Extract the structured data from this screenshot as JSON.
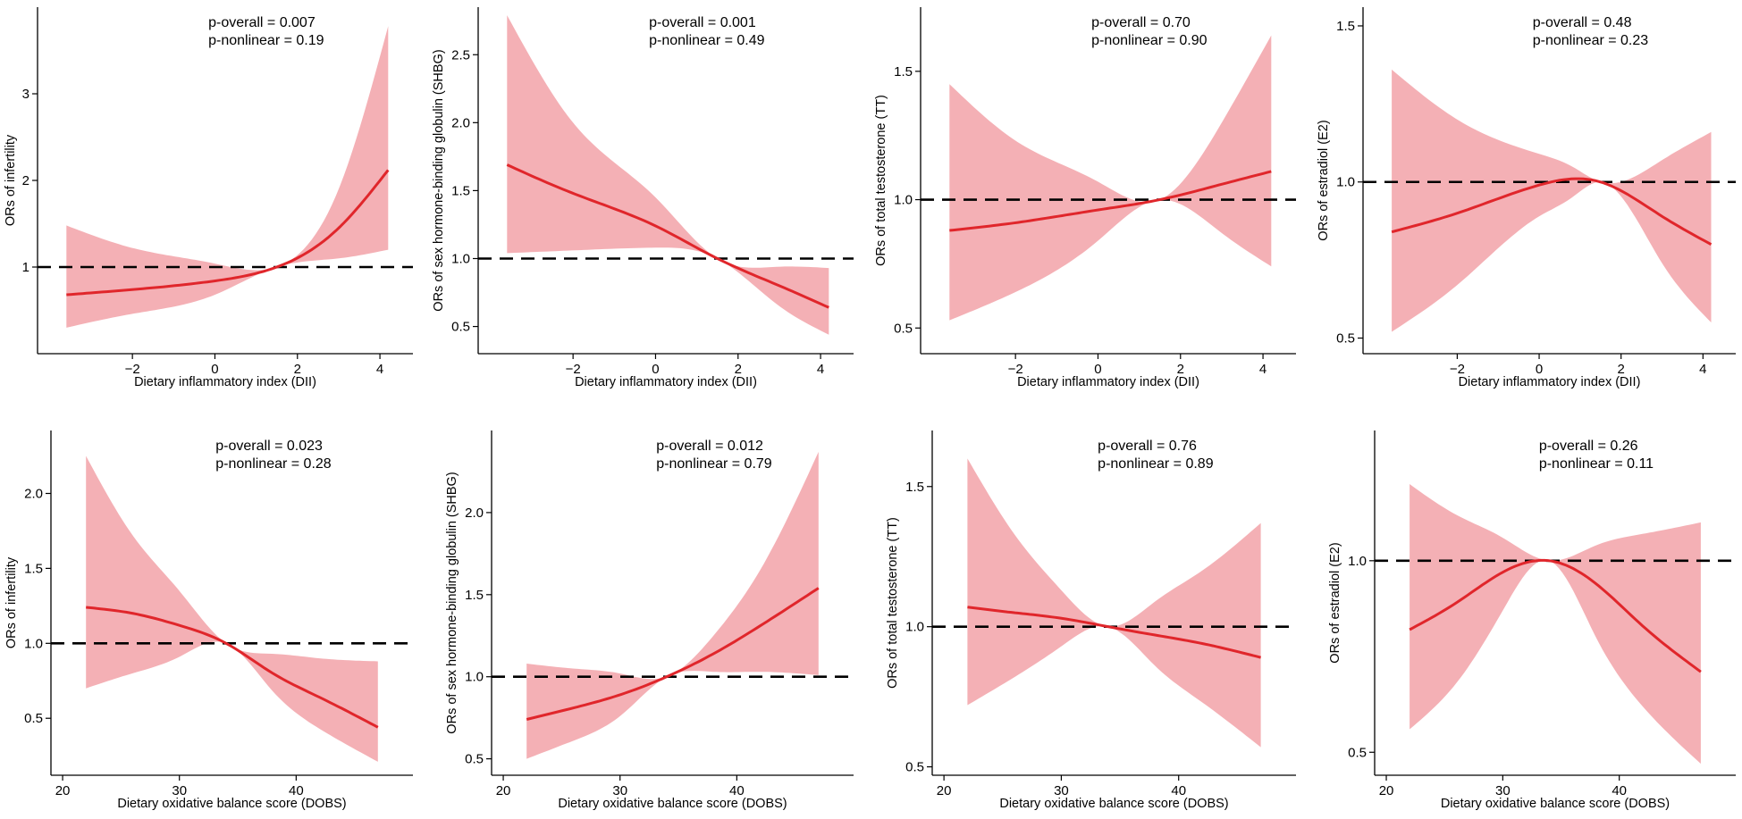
{
  "figure": {
    "description_colors": {
      "curve": "#e0262b",
      "band": "#f4b0b5",
      "reference_line": "#000000",
      "axis": "#000000"
    }
  },
  "chart_data": [
    {
      "type": "line",
      "panel": "A1",
      "title": "",
      "xlabel": "Dietary inflammatory index (DII)",
      "ylabel": "ORs of infertility",
      "xlim": [
        -4.3,
        4.8
      ],
      "ylim": [
        0.0,
        4.0
      ],
      "xticks": [
        -2,
        0,
        2,
        4
      ],
      "yticks": [
        1,
        2,
        3
      ],
      "ytick_labels": [
        "1",
        "2",
        "3"
      ],
      "reference_y": 1.0,
      "annotation": [
        "p-overall = 0.007",
        "p-nonlinear = 0.19"
      ],
      "series": [
        {
          "name": "OR",
          "x": [
            -3.6,
            -2,
            0,
            1.5,
            3,
            4.2
          ],
          "y": [
            0.68,
            0.74,
            0.84,
            1.0,
            1.45,
            2.12
          ]
        },
        {
          "name": "CI lower",
          "x": [
            -3.6,
            -2,
            0,
            1.5,
            3,
            4.2
          ],
          "y": [
            0.3,
            0.46,
            0.68,
            1.0,
            1.1,
            1.2
          ]
        },
        {
          "name": "CI upper",
          "x": [
            -3.6,
            -2,
            0,
            1.5,
            3,
            4.2
          ],
          "y": [
            1.48,
            1.22,
            1.04,
            1.0,
            1.9,
            3.78
          ]
        }
      ]
    },
    {
      "type": "line",
      "panel": "A2",
      "title": "",
      "xlabel": "Dietary inflammatory index (DII)",
      "ylabel": "ORs of sex hormone-binding globulin (SHBG)",
      "xlim": [
        -4.3,
        4.8
      ],
      "ylim": [
        0.3,
        2.85
      ],
      "xticks": [
        -2,
        0,
        2,
        4
      ],
      "yticks": [
        0.5,
        1.0,
        1.5,
        2.0,
        2.5
      ],
      "ytick_labels": [
        "0.5",
        "1.0",
        "1.5",
        "2.0",
        "2.5"
      ],
      "reference_y": 1.0,
      "annotation": [
        "p-overall = 0.001",
        "p-nonlinear = 0.49"
      ],
      "series": [
        {
          "name": "OR",
          "x": [
            -3.6,
            -2,
            0,
            1.5,
            3,
            4.2
          ],
          "y": [
            1.69,
            1.48,
            1.24,
            1.0,
            0.8,
            0.64
          ]
        },
        {
          "name": "CI lower",
          "x": [
            -3.6,
            -2,
            0,
            1.5,
            3,
            4.2
          ],
          "y": [
            1.04,
            1.06,
            1.08,
            1.0,
            0.65,
            0.44
          ]
        },
        {
          "name": "CI upper",
          "x": [
            -3.6,
            -2,
            0,
            1.5,
            3,
            4.2
          ],
          "y": [
            2.79,
            2.0,
            1.45,
            1.0,
            0.94,
            0.93
          ]
        }
      ]
    },
    {
      "type": "line",
      "panel": "A3",
      "title": "",
      "xlabel": "Dietary inflammatory index (DII)",
      "ylabel": "ORs of total testosterone (TT)",
      "xlim": [
        -4.3,
        4.8
      ],
      "ylim": [
        0.4,
        1.75
      ],
      "xticks": [
        -2,
        0,
        2,
        4
      ],
      "yticks": [
        0.5,
        1.0,
        1.5
      ],
      "ytick_labels": [
        "0.5",
        "1.0",
        "1.5"
      ],
      "reference_y": 1.0,
      "annotation": [
        "p-overall = 0.70",
        "p-nonlinear = 0.90"
      ],
      "series": [
        {
          "name": "OR",
          "x": [
            -3.6,
            -2,
            0,
            1.5,
            3,
            4.2
          ],
          "y": [
            0.88,
            0.91,
            0.96,
            1.0,
            1.06,
            1.11
          ]
        },
        {
          "name": "CI lower",
          "x": [
            -3.6,
            -2,
            0,
            1.5,
            3,
            4.2
          ],
          "y": [
            0.53,
            0.64,
            0.84,
            1.0,
            0.87,
            0.74
          ]
        },
        {
          "name": "CI upper",
          "x": [
            -3.6,
            -2,
            0,
            1.5,
            3,
            4.2
          ],
          "y": [
            1.45,
            1.23,
            1.07,
            1.0,
            1.3,
            1.64
          ]
        }
      ]
    },
    {
      "type": "line",
      "panel": "A4",
      "title": "",
      "xlabel": "Dietary inflammatory index (DII)",
      "ylabel": "ORs of estradiol (E2)",
      "xlim": [
        -4.3,
        4.8
      ],
      "ylim": [
        0.45,
        1.56
      ],
      "xticks": [
        -2,
        0,
        2,
        4
      ],
      "yticks": [
        0.5,
        1.0,
        1.5
      ],
      "ytick_labels": [
        "0.5",
        "1.0",
        "1.5"
      ],
      "reference_y": 1.0,
      "annotation": [
        "p-overall = 0.48",
        "p-nonlinear = 0.23"
      ],
      "series": [
        {
          "name": "OR",
          "x": [
            -3.6,
            -2,
            0,
            0.8,
            1.5,
            3,
            4.2
          ],
          "y": [
            0.84,
            0.9,
            0.99,
            1.01,
            1.0,
            0.89,
            0.8
          ]
        },
        {
          "name": "CI lower",
          "x": [
            -3.6,
            -2,
            0,
            0.8,
            1.5,
            3,
            4.2
          ],
          "y": [
            0.52,
            0.67,
            0.89,
            0.95,
            1.0,
            0.74,
            0.55
          ]
        },
        {
          "name": "CI upper",
          "x": [
            -3.6,
            -2,
            0,
            0.8,
            1.5,
            3,
            4.2
          ],
          "y": [
            1.36,
            1.2,
            1.09,
            1.05,
            1.0,
            1.07,
            1.16
          ]
        }
      ]
    },
    {
      "type": "line",
      "panel": "B1",
      "title": "",
      "xlabel": "Dietary oxidative balance score (DOBS)",
      "ylabel": "ORs of infertility",
      "xlim": [
        19,
        50
      ],
      "ylim": [
        0.12,
        2.42
      ],
      "xticks": [
        20,
        30,
        40
      ],
      "yticks": [
        0.5,
        1.0,
        1.5,
        2.0
      ],
      "ytick_labels": [
        "0.5",
        "1.0",
        "1.5",
        "2.0"
      ],
      "reference_y": 1.0,
      "annotation": [
        "p-overall = 0.023",
        "p-nonlinear = 0.28"
      ],
      "series": [
        {
          "name": "OR",
          "x": [
            22,
            26,
            30,
            34,
            38,
            42,
            47
          ],
          "y": [
            1.24,
            1.2,
            1.12,
            1.0,
            0.8,
            0.64,
            0.44
          ]
        },
        {
          "name": "CI lower",
          "x": [
            22,
            26,
            30,
            34,
            38,
            42,
            47
          ],
          "y": [
            0.7,
            0.8,
            0.91,
            1.0,
            0.68,
            0.43,
            0.21
          ]
        },
        {
          "name": "CI upper",
          "x": [
            22,
            26,
            30,
            34,
            38,
            42,
            47
          ],
          "y": [
            2.25,
            1.72,
            1.35,
            1.0,
            0.93,
            0.9,
            0.88
          ]
        }
      ]
    },
    {
      "type": "line",
      "panel": "B2",
      "title": "",
      "xlabel": "Dietary oxidative balance score (DOBS)",
      "ylabel": "ORs of sex hormone-binding globulin (SHBG)",
      "xlim": [
        19,
        50
      ],
      "ylim": [
        0.4,
        2.5
      ],
      "xticks": [
        20,
        30,
        40
      ],
      "yticks": [
        0.5,
        1.0,
        1.5,
        2.0
      ],
      "ytick_labels": [
        "0.5",
        "1.0",
        "1.5",
        "2.0"
      ],
      "reference_y": 1.0,
      "annotation": [
        "p-overall = 0.012",
        "p-nonlinear = 0.79"
      ],
      "series": [
        {
          "name": "OR",
          "x": [
            22,
            26,
            30,
            34,
            38,
            42,
            47
          ],
          "y": [
            0.74,
            0.81,
            0.89,
            1.0,
            1.14,
            1.31,
            1.54
          ]
        },
        {
          "name": "CI lower",
          "x": [
            22,
            26,
            30,
            34,
            38,
            42,
            47
          ],
          "y": [
            0.5,
            0.61,
            0.76,
            1.0,
            1.03,
            1.03,
            1.01
          ]
        },
        {
          "name": "CI upper",
          "x": [
            22,
            26,
            30,
            34,
            38,
            42,
            47
          ],
          "y": [
            1.08,
            1.05,
            1.02,
            1.0,
            1.25,
            1.65,
            2.37
          ]
        }
      ]
    },
    {
      "type": "line",
      "panel": "B3",
      "title": "",
      "xlabel": "Dietary oxidative balance score (DOBS)",
      "ylabel": "ORs of total testosterone (TT)",
      "xlim": [
        19,
        50
      ],
      "ylim": [
        0.47,
        1.7
      ],
      "xticks": [
        20,
        30,
        40
      ],
      "yticks": [
        0.5,
        1.0,
        1.5
      ],
      "ytick_labels": [
        "0.5",
        "1.0",
        "1.5"
      ],
      "reference_y": 1.0,
      "annotation": [
        "p-overall = 0.76",
        "p-nonlinear = 0.89"
      ],
      "series": [
        {
          "name": "OR",
          "x": [
            22,
            26,
            30,
            34,
            38,
            42,
            47
          ],
          "y": [
            1.07,
            1.05,
            1.03,
            1.0,
            0.97,
            0.94,
            0.89
          ]
        },
        {
          "name": "CI lower",
          "x": [
            22,
            26,
            30,
            34,
            38,
            42,
            47
          ],
          "y": [
            0.72,
            0.82,
            0.93,
            1.0,
            0.86,
            0.73,
            0.57
          ]
        },
        {
          "name": "CI upper",
          "x": [
            22,
            26,
            30,
            34,
            38,
            42,
            47
          ],
          "y": [
            1.6,
            1.33,
            1.13,
            1.0,
            1.09,
            1.2,
            1.37
          ]
        }
      ]
    },
    {
      "type": "line",
      "panel": "B4",
      "title": "",
      "xlabel": "Dietary oxidative balance score (DOBS)",
      "ylabel": "ORs of estradiol (E2)",
      "xlim": [
        19,
        50
      ],
      "ylim": [
        0.44,
        1.34
      ],
      "xticks": [
        20,
        30,
        40
      ],
      "yticks": [
        0.5,
        1.0
      ],
      "ytick_labels": [
        "0.5",
        "1.0"
      ],
      "reference_y": 1.0,
      "annotation": [
        "p-overall = 0.26",
        "p-nonlinear = 0.11"
      ],
      "series": [
        {
          "name": "OR",
          "x": [
            22,
            26,
            30,
            34,
            38,
            42,
            47
          ],
          "y": [
            0.82,
            0.89,
            0.97,
            1.0,
            0.94,
            0.83,
            0.71
          ]
        },
        {
          "name": "CI lower",
          "x": [
            22,
            26,
            30,
            34,
            38,
            42,
            47
          ],
          "y": [
            0.56,
            0.68,
            0.87,
            1.0,
            0.8,
            0.62,
            0.47
          ]
        },
        {
          "name": "CI upper",
          "x": [
            22,
            26,
            30,
            34,
            38,
            42,
            47
          ],
          "y": [
            1.2,
            1.12,
            1.06,
            1.0,
            1.04,
            1.07,
            1.1
          ]
        }
      ]
    }
  ]
}
